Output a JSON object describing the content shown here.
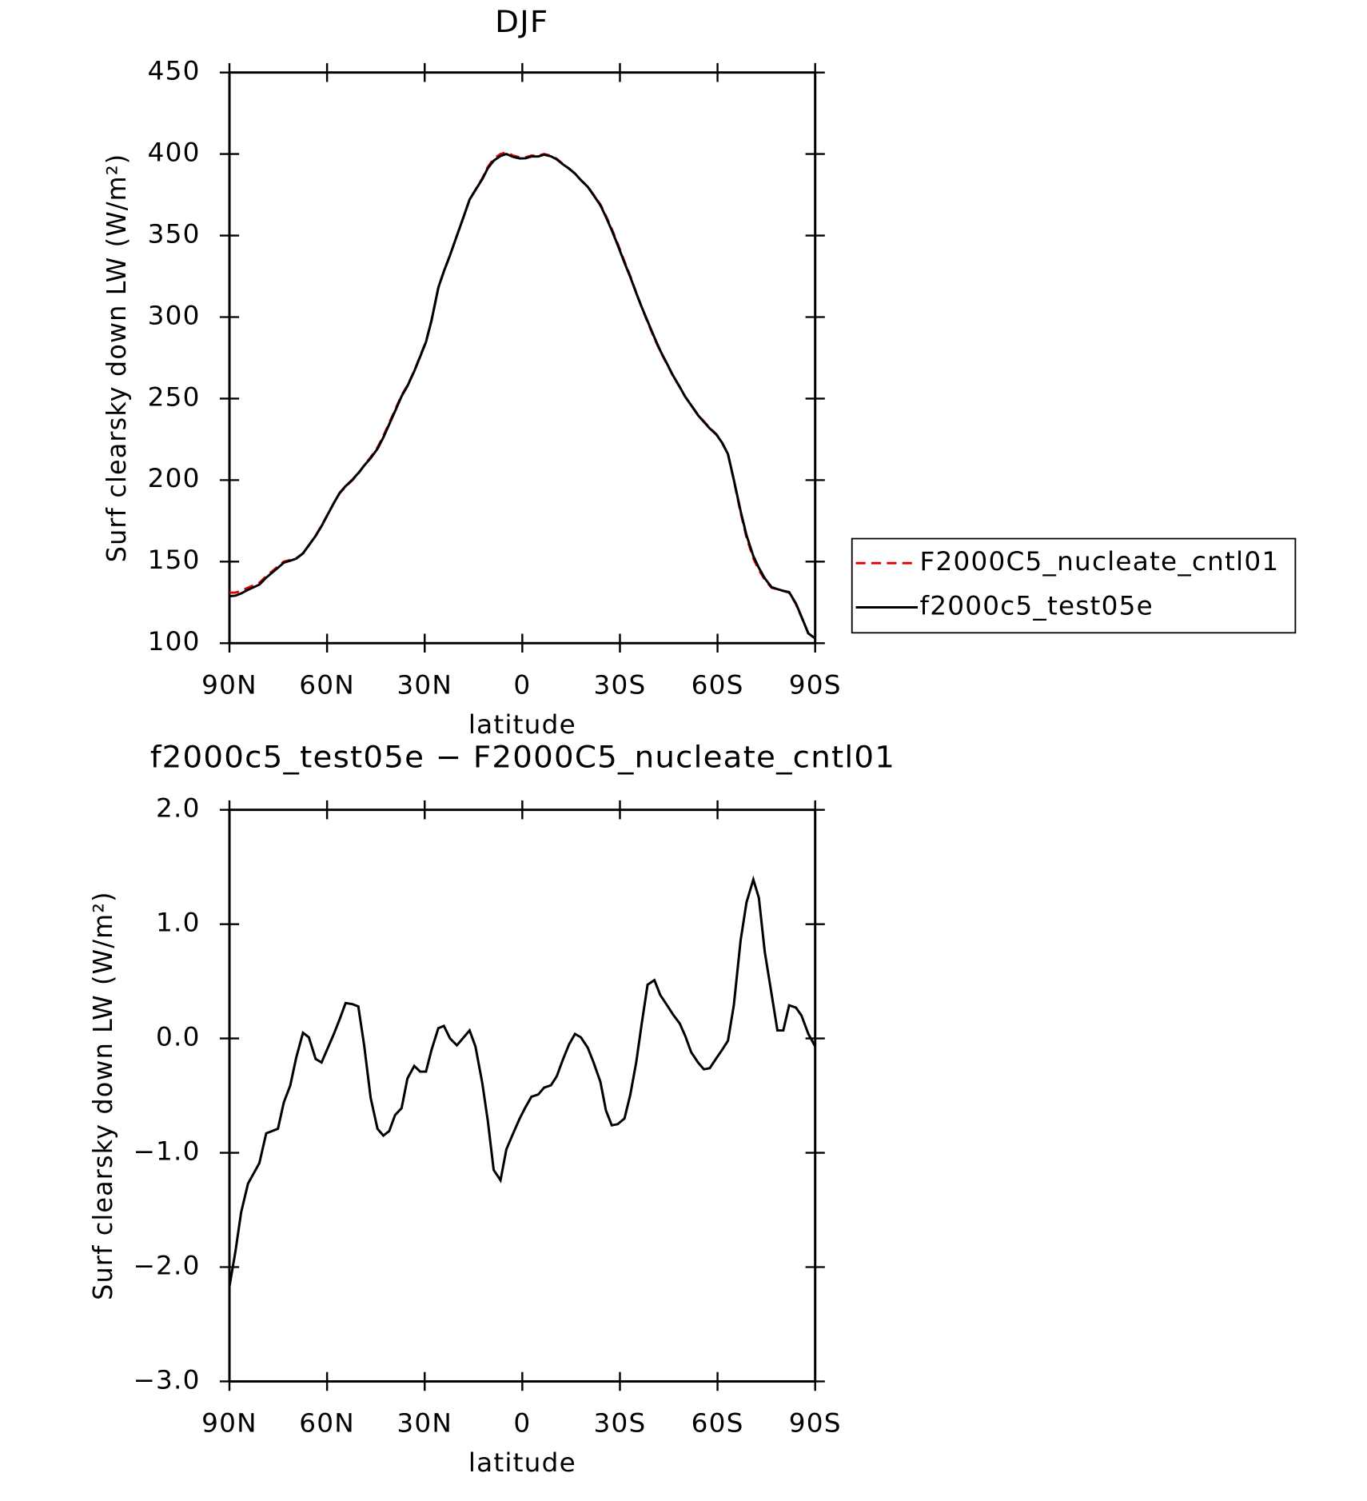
{
  "chart_data": [
    {
      "type": "line",
      "title": "DJF",
      "x_label": "latitude",
      "y_label": "Surf clearsky down LW (W/m²)",
      "x": [
        90,
        88.2,
        86.4,
        84.3,
        80.8,
        78.7,
        75.1,
        73.3,
        71.3,
        69.5,
        67.4,
        65.6,
        63.5,
        61.7,
        57.9,
        56.1,
        54.3,
        52.2,
        50.4,
        48.6,
        46.6,
        44.5,
        42.7,
        40.9,
        39.1,
        37.1,
        35.3,
        33.2,
        31.4,
        29.6,
        27.9,
        25.8,
        24.1,
        22.2,
        20.1,
        18.3,
        16.2,
        14.4,
        12.3,
        10.6,
        8.8,
        6.7,
        4.9,
        2.8,
        0.8,
        -1.0,
        -2.8,
        -4.9,
        -6.7,
        -8.8,
        -10.6,
        -12.4,
        -14.4,
        -16.2,
        -18.0,
        -20.1,
        -21.9,
        -24.0,
        -25.7,
        -27.5,
        -29.3,
        -31.4,
        -33.2,
        -35.0,
        -36.7,
        -38.5,
        -40.6,
        -42.4,
        -44.5,
        -46.3,
        -48.4,
        -50.1,
        -51.9,
        -54.0,
        -55.8,
        -57.6,
        -59.7,
        -61.4,
        -63.2,
        -65.0,
        -67.1,
        -68.9,
        -71.0,
        -72.7,
        -74.5,
        -76.6,
        -78.4,
        -80.2,
        -82.0,
        -84.1,
        -85.8,
        -87.9,
        -90
      ],
      "series": [
        {
          "name": "F2000C5_nucleate_cntl01",
          "color": "#e00000",
          "dash": true,
          "values": [
            131,
            131,
            132,
            134,
            137,
            141,
            147,
            150,
            151,
            152,
            155,
            160,
            166,
            172,
            186,
            192,
            196,
            200,
            204,
            209,
            214,
            220,
            227,
            235,
            243,
            252,
            258,
            267,
            276,
            285,
            298,
            318,
            328,
            338,
            350,
            360,
            372,
            378,
            385,
            392,
            397,
            400,
            401,
            399,
            398,
            398,
            399,
            399,
            400,
            399,
            397,
            394,
            391,
            388,
            384,
            380,
            375,
            369,
            362,
            354,
            345,
            334,
            325,
            315,
            306,
            297,
            287,
            279,
            271,
            264,
            257,
            251,
            246,
            240,
            236,
            232,
            228,
            223,
            216,
            200,
            180,
            165,
            152,
            145,
            139,
            134,
            133,
            132,
            131,
            124,
            116,
            106,
            103
          ]
        },
        {
          "name": "f2000c5_test05e",
          "color": "#000000",
          "dash": false,
          "values": [
            128.8,
            129.1,
            130.5,
            132.7,
            135.9,
            140.2,
            146.2,
            149.4,
            150.6,
            151.8,
            155.1,
            160.0,
            165.8,
            171.8,
            186.0,
            192.2,
            196.3,
            200.3,
            204.3,
            208.9,
            213.5,
            219.2,
            226.2,
            234.2,
            242.3,
            251.4,
            257.7,
            266.8,
            275.7,
            284.7,
            297.9,
            318.1,
            328.1,
            338.0,
            349.9,
            360.0,
            372.1,
            377.9,
            384.6,
            391.3,
            395.9,
            398.8,
            400.0,
            398.2,
            397.3,
            397.4,
            398.5,
            398.5,
            399.6,
            398.6,
            396.7,
            393.8,
            391.0,
            388.0,
            384.0,
            379.9,
            374.8,
            368.6,
            361.4,
            353.2,
            344.3,
            333.3,
            324.5,
            314.8,
            306.1,
            297.5,
            287.5,
            279.4,
            271.3,
            264.2,
            257.1,
            251.0,
            245.9,
            239.8,
            235.7,
            231.7,
            227.8,
            222.9,
            216.0,
            200.3,
            180.9,
            166.2,
            153.4,
            146.2,
            139.8,
            134.4,
            133.1,
            132.1,
            131.3,
            124.3,
            116.2,
            106.0,
            102.9
          ]
        }
      ],
      "xlim": [
        90,
        -90
      ],
      "xticks": [
        {
          "value": 90,
          "label": "90N"
        },
        {
          "value": 60,
          "label": "60N"
        },
        {
          "value": 30,
          "label": "30N"
        },
        0,
        {
          "value": -30,
          "label": "30S"
        },
        {
          "value": -60,
          "label": "60S"
        },
        {
          "value": -90,
          "label": "90S"
        }
      ],
      "ylim": [
        100,
        450
      ],
      "yticks": [
        100,
        150,
        200,
        250,
        300,
        350,
        400,
        450
      ],
      "legend": "right"
    },
    {
      "type": "line",
      "title": "f2000c5_test05e − F2000C5_nucleate_cntl01",
      "x_label": "latitude",
      "y_label": "Surf clearsky down LW (W/m²)",
      "x": [
        90,
        88.2,
        86.4,
        84.3,
        80.8,
        78.7,
        75.1,
        73.3,
        71.3,
        69.5,
        67.4,
        65.6,
        63.5,
        61.7,
        57.9,
        56.1,
        54.3,
        52.2,
        50.4,
        48.6,
        46.6,
        44.5,
        42.7,
        40.9,
        39.1,
        37.1,
        35.3,
        33.2,
        31.4,
        29.6,
        27.9,
        25.8,
        24.1,
        22.2,
        20.1,
        18.3,
        16.2,
        14.4,
        12.3,
        10.6,
        8.8,
        6.7,
        4.9,
        2.8,
        0.8,
        -1.0,
        -2.8,
        -4.9,
        -6.7,
        -8.8,
        -10.6,
        -12.4,
        -14.4,
        -16.2,
        -18.0,
        -20.1,
        -21.9,
        -24.0,
        -25.7,
        -27.5,
        -29.3,
        -31.4,
        -33.2,
        -35.0,
        -36.7,
        -38.5,
        -40.6,
        -42.4,
        -44.5,
        -46.3,
        -48.4,
        -50.1,
        -51.9,
        -54.0,
        -55.8,
        -57.6,
        -59.7,
        -61.4,
        -63.2,
        -65.0,
        -67.1,
        -68.9,
        -71.0,
        -72.7,
        -74.5,
        -76.6,
        -78.4,
        -80.2,
        -82.0,
        -84.1,
        -85.8,
        -87.9,
        -90
      ],
      "series": [
        {
          "color": "#000000",
          "dash": false,
          "values": [
            -2.17,
            -1.87,
            -1.52,
            -1.27,
            -1.09,
            -0.83,
            -0.79,
            -0.56,
            -0.41,
            -0.17,
            0.05,
            0.01,
            -0.18,
            -0.21,
            0.04,
            0.17,
            0.31,
            0.3,
            0.28,
            -0.06,
            -0.52,
            -0.79,
            -0.85,
            -0.81,
            -0.67,
            -0.61,
            -0.35,
            -0.24,
            -0.29,
            -0.29,
            -0.1,
            0.09,
            0.11,
            0.0,
            -0.06,
            0.0,
            0.07,
            -0.07,
            -0.39,
            -0.72,
            -1.15,
            -1.24,
            -0.97,
            -0.83,
            -0.7,
            -0.6,
            -0.51,
            -0.49,
            -0.43,
            -0.41,
            -0.33,
            -0.19,
            -0.05,
            0.04,
            0.01,
            -0.08,
            -0.21,
            -0.38,
            -0.63,
            -0.76,
            -0.75,
            -0.7,
            -0.49,
            -0.21,
            0.13,
            0.47,
            0.51,
            0.38,
            0.29,
            0.21,
            0.13,
            0.02,
            -0.12,
            -0.21,
            -0.27,
            -0.26,
            -0.17,
            -0.1,
            -0.02,
            0.29,
            0.86,
            1.19,
            1.39,
            1.23,
            0.76,
            0.39,
            0.07,
            0.07,
            0.29,
            0.27,
            0.2,
            0.04,
            -0.07
          ]
        }
      ],
      "xlim": [
        90,
        -90
      ],
      "xticks": [
        {
          "value": 90,
          "label": "90N"
        },
        {
          "value": 60,
          "label": "60N"
        },
        {
          "value": 30,
          "label": "30N"
        },
        0,
        {
          "value": -30,
          "label": "30S"
        },
        {
          "value": -60,
          "label": "60S"
        },
        {
          "value": -90,
          "label": "90S"
        }
      ],
      "ylim": [
        -3,
        2
      ],
      "yticks": [
        {
          "value": -3,
          "label": "−3.0"
        },
        {
          "value": -2,
          "label": "−2.0"
        },
        {
          "value": -1,
          "label": "−1.0"
        },
        {
          "value": 0,
          "label": "0.0"
        },
        {
          "value": 1,
          "label": "1.0"
        },
        {
          "value": 2,
          "label": "2.0"
        }
      ]
    }
  ]
}
